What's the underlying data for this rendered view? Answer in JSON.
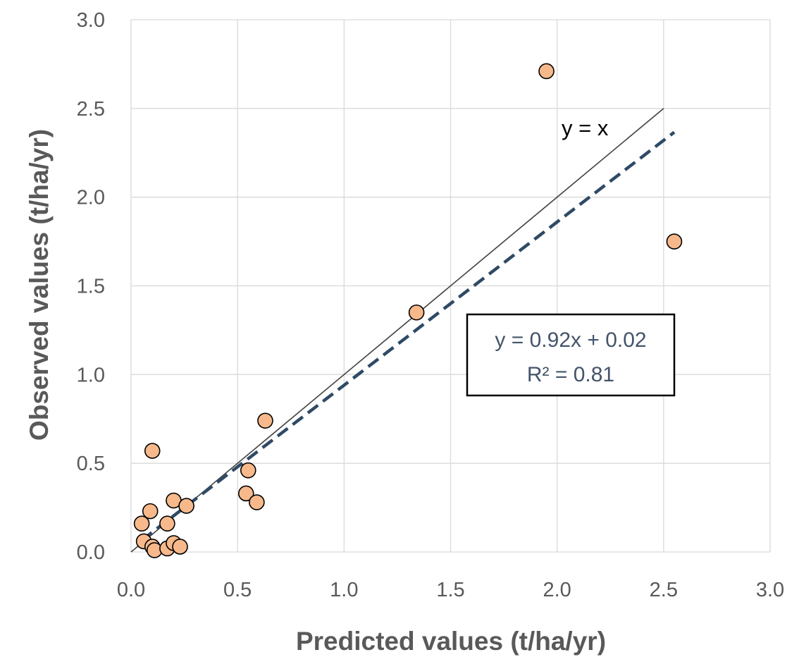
{
  "chart_data": {
    "type": "scatter",
    "xlabel": "Predicted values (t/ha/yr)",
    "ylabel": "Observed values (t/ha/yr)",
    "xlim": [
      0,
      3
    ],
    "ylim": [
      0,
      3
    ],
    "x_ticks": [
      "0.0",
      "0.5",
      "1.0",
      "1.5",
      "2.0",
      "2.5",
      "3.0"
    ],
    "y_ticks": [
      "0.0",
      "0.5",
      "1.0",
      "1.5",
      "2.0",
      "2.5",
      "3.0"
    ],
    "grid": true,
    "series": [
      {
        "name": "observations",
        "color": "#f7b98b",
        "edge_color": "#000000",
        "points": [
          {
            "x": 0.05,
            "y": 0.16
          },
          {
            "x": 0.06,
            "y": 0.06
          },
          {
            "x": 0.09,
            "y": 0.23
          },
          {
            "x": 0.1,
            "y": 0.57
          },
          {
            "x": 0.1,
            "y": 0.03
          },
          {
            "x": 0.11,
            "y": 0.01
          },
          {
            "x": 0.17,
            "y": 0.16
          },
          {
            "x": 0.17,
            "y": 0.02
          },
          {
            "x": 0.2,
            "y": 0.05
          },
          {
            "x": 0.2,
            "y": 0.29
          },
          {
            "x": 0.23,
            "y": 0.03
          },
          {
            "x": 0.26,
            "y": 0.26
          },
          {
            "x": 0.54,
            "y": 0.33
          },
          {
            "x": 0.55,
            "y": 0.46
          },
          {
            "x": 0.59,
            "y": 0.28
          },
          {
            "x": 0.63,
            "y": 0.74
          },
          {
            "x": 1.34,
            "y": 1.35
          },
          {
            "x": 1.95,
            "y": 2.71
          },
          {
            "x": 2.55,
            "y": 1.75
          }
        ]
      }
    ],
    "lines": [
      {
        "name": "identity",
        "label": "y = x",
        "style": "solid",
        "color": "#404040",
        "x": [
          0,
          2.5
        ],
        "y": [
          0,
          2.5
        ]
      },
      {
        "name": "regression",
        "style": "dashed",
        "color": "#2f4a66",
        "x": [
          0.05,
          2.55
        ],
        "y": [
          0.066,
          2.366
        ]
      }
    ],
    "annotations": {
      "identity_label": "y = x",
      "equation": "y = 0.92x + 0.02",
      "r_squared": "R² = 0.81"
    }
  }
}
